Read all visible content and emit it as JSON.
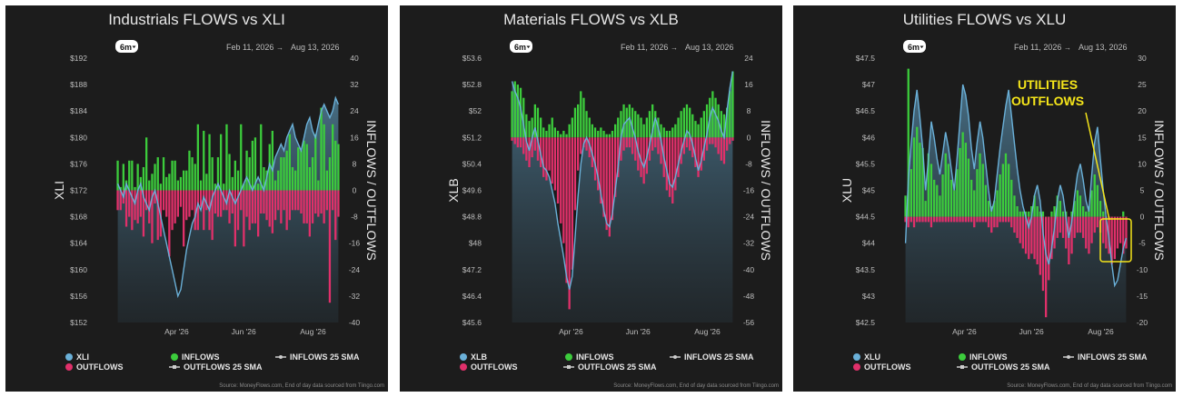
{
  "panels": [
    {
      "title": "Industrials FLOWS vs XLI",
      "timeframe": "6m",
      "date_start": "Feb 11, 2026",
      "date_arrow": "→",
      "date_end": "Aug 13, 2026",
      "left_axis_label": "XLI",
      "right_axis_label": "INFLOWS / OUTFLOWS",
      "price_ticks": [
        "$192",
        "$188",
        "$184",
        "$180",
        "$176",
        "$172",
        "$168",
        "$164",
        "$160",
        "$156",
        "$152"
      ],
      "flow_ticks": [
        "40",
        "32",
        "24",
        "16",
        "8",
        "0",
        "-8",
        "-16",
        "-24",
        "-32",
        "-40"
      ],
      "x_ticks": [
        "Apr '26",
        "Jun '26",
        "Aug '26"
      ],
      "legend": {
        "price": "XLI",
        "inflows": "INFLOWS",
        "inflows_sma": "INFLOWS 25 SMA",
        "outflows": "OUTFLOWS",
        "outflows_sma": "OUTFLOWS 25 SMA"
      },
      "source": "Source: MoneyFlows.com, End of day data sourced from Tiingo.com"
    },
    {
      "title": "Materials FLOWS vs XLB",
      "timeframe": "6m",
      "date_start": "Feb 11, 2026",
      "date_arrow": "→",
      "date_end": "Aug 13, 2026",
      "left_axis_label": "XLB",
      "right_axis_label": "INFLOWS / OUTFLOWS",
      "price_ticks": [
        "$53.6",
        "$52.8",
        "$52",
        "$51.2",
        "$50.4",
        "$49.6",
        "$48.8",
        "$48",
        "$47.2",
        "$46.4",
        "$45.6"
      ],
      "flow_ticks": [
        "24",
        "16",
        "8",
        "0",
        "-8",
        "-16",
        "-24",
        "-32",
        "-40",
        "-48",
        "-56"
      ],
      "x_ticks": [
        "Apr '26",
        "Jun '26",
        "Aug '26"
      ],
      "legend": {
        "price": "XLB",
        "inflows": "INFLOWS",
        "inflows_sma": "INFLOWS 25 SMA",
        "outflows": "OUTFLOWS",
        "outflows_sma": "OUTFLOWS 25 SMA"
      },
      "source": "Source: MoneyFlows.com, End of day data sourced from Tiingo.com"
    },
    {
      "title": "Utilities FLOWS vs XLU",
      "timeframe": "6m",
      "date_start": "Feb 11, 2026",
      "date_arrow": "→",
      "date_end": "Aug 13, 2026",
      "left_axis_label": "XLU",
      "right_axis_label": "INFLOWS / OUTFLOWS",
      "price_ticks": [
        "$47.5",
        "$47",
        "$46.5",
        "$46",
        "$45.5",
        "$45",
        "$44.5",
        "$44",
        "$43.5",
        "$43",
        "$42.5"
      ],
      "flow_ticks": [
        "30",
        "25",
        "20",
        "15",
        "10",
        "5",
        "0",
        "-5",
        "-10",
        "-15",
        "-20"
      ],
      "x_ticks": [
        "Apr '26",
        "Jun '26",
        "Aug '26"
      ],
      "legend": {
        "price": "XLU",
        "inflows": "INFLOWS",
        "inflows_sma": "INFLOWS 25 SMA",
        "outflows": "OUTFLOWS",
        "outflows_sma": "OUTFLOWS 25 SMA"
      },
      "annotation": [
        "UTILITIES",
        "OUTFLOWS"
      ],
      "source": "Source: MoneyFlows.com, End of day data sourced from Tiingo.com"
    }
  ],
  "colors": {
    "background": "#1c1c1c",
    "price_line": "#6ab0d8",
    "inflow": "#3ccc3c",
    "outflow": "#e0306a",
    "annotation": "#f5e51a",
    "text": "#e6e6e6",
    "tick": "#bdbdbd"
  },
  "chart_data": [
    {
      "type": "bar",
      "title": "Industrials FLOWS vs XLI",
      "x_range": [
        "2026-02-11",
        "2026-08-13"
      ],
      "price_series": {
        "name": "XLI",
        "ylim": [
          152,
          192
        ],
        "values": [
          173,
          172,
          171,
          173,
          172,
          171,
          170,
          172,
          173,
          171,
          170,
          169,
          171,
          172,
          170,
          168,
          166,
          164,
          162,
          160,
          158,
          156,
          157,
          160,
          163,
          165,
          167,
          168,
          170,
          169,
          171,
          170,
          169,
          171,
          172,
          173,
          172,
          171,
          170,
          172,
          171,
          170,
          171,
          172,
          173,
          174,
          173,
          172,
          173,
          174,
          173,
          172,
          174,
          176,
          175,
          177,
          178,
          179,
          178,
          180,
          181,
          182,
          180,
          179,
          178,
          180,
          182,
          183,
          181,
          180,
          182,
          184,
          185,
          184,
          183,
          184,
          186,
          185
        ]
      },
      "flow_series": {
        "ylim": [
          -40,
          40
        ],
        "inflows": [
          9,
          1,
          8,
          3,
          9,
          9,
          1,
          8,
          4,
          7,
          16,
          3,
          5,
          8,
          10,
          2,
          10,
          4,
          5,
          9,
          9,
          3,
          4,
          6,
          6,
          12,
          10,
          8,
          20,
          3,
          18,
          5,
          17,
          10,
          2,
          10,
          17,
          2,
          20,
          11,
          4,
          9,
          6,
          20,
          2,
          12,
          10,
          15,
          16,
          2,
          20,
          7,
          6,
          14,
          18,
          3,
          6,
          10,
          10,
          12,
          17,
          7,
          6,
          13,
          12,
          15,
          14,
          7,
          10,
          17,
          3,
          25,
          20,
          6,
          10,
          20,
          15,
          14
        ],
        "outflows": [
          -6,
          -6,
          -4,
          -11,
          -8,
          -12,
          -9,
          -10,
          -8,
          -14,
          -6,
          -10,
          -16,
          -4,
          -15,
          -14,
          -6,
          -8,
          -20,
          -12,
          -10,
          -8,
          -5,
          -17,
          -9,
          -8,
          -6,
          -12,
          -12,
          -5,
          -12,
          -6,
          -12,
          -15,
          -7,
          -8,
          -8,
          -6,
          -6,
          -10,
          -7,
          -17,
          -12,
          -6,
          -17,
          -8,
          -12,
          -10,
          -10,
          -14,
          -7,
          -7,
          -9,
          -11,
          -13,
          -9,
          -6,
          -10,
          -6,
          -12,
          -9,
          -6,
          -6,
          -6,
          -7,
          -10,
          -10,
          -14,
          -10,
          -7,
          -8,
          -7,
          -10,
          -6,
          -34,
          -6,
          -15,
          -8
        ]
      }
    },
    {
      "type": "bar",
      "title": "Materials FLOWS vs XLB",
      "x_range": [
        "2026-02-11",
        "2026-08-13"
      ],
      "price_series": {
        "name": "XLB",
        "ylim": [
          45.6,
          53.6
        ],
        "values": [
          52.9,
          52.6,
          52.4,
          52.1,
          51.6,
          51.1,
          50.8,
          51.2,
          51.5,
          51.1,
          50.7,
          50.3,
          50.2,
          50.0,
          49.6,
          49.2,
          48.6,
          48.1,
          47.6,
          47.0,
          46.6,
          47.0,
          48.2,
          49.4,
          50.4,
          51.0,
          51.2,
          51.0,
          50.7,
          50.4,
          50.0,
          49.5,
          49.0,
          48.6,
          48.5,
          48.9,
          49.6,
          50.3,
          51.2,
          51.6,
          51.7,
          51.8,
          51.5,
          51.2,
          50.8,
          50.5,
          50.3,
          50.6,
          51.0,
          51.4,
          51.8,
          51.5,
          51.1,
          50.6,
          50.2,
          49.8,
          49.7,
          50.0,
          50.4,
          50.8,
          51.1,
          51.4,
          51.3,
          51.0,
          50.6,
          50.2,
          50.5,
          50.9,
          51.3,
          51.8,
          52.1,
          51.9,
          51.7,
          51.4,
          51.2,
          52.0,
          52.7,
          53.2
        ]
      },
      "flow_series": {
        "ylim": [
          -56,
          24
        ],
        "inflows": [
          14,
          17,
          16,
          15,
          12,
          7,
          5,
          6,
          10,
          9,
          6,
          3,
          2,
          4,
          6,
          3,
          2,
          1,
          2,
          1,
          4,
          6,
          9,
          10,
          14,
          12,
          8,
          6,
          4,
          3,
          2,
          3,
          2,
          1,
          1,
          2,
          4,
          6,
          8,
          10,
          9,
          10,
          9,
          8,
          7,
          6,
          4,
          6,
          8,
          10,
          8,
          6,
          4,
          3,
          2,
          2,
          3,
          4,
          6,
          8,
          9,
          10,
          9,
          7,
          5,
          4,
          6,
          8,
          10,
          12,
          14,
          12,
          10,
          8,
          7,
          9,
          14,
          20
        ],
        "outflows": [
          -1,
          -2,
          -3,
          -3,
          -5,
          -7,
          -9,
          -6,
          -4,
          -7,
          -9,
          -12,
          -13,
          -10,
          -14,
          -16,
          -20,
          -26,
          -32,
          -44,
          -52,
          -40,
          -22,
          -10,
          -5,
          -3,
          -4,
          -6,
          -9,
          -13,
          -16,
          -20,
          -24,
          -28,
          -30,
          -25,
          -18,
          -12,
          -7,
          -4,
          -3,
          -3,
          -5,
          -7,
          -10,
          -12,
          -14,
          -11,
          -7,
          -4,
          -3,
          -5,
          -8,
          -12,
          -16,
          -18,
          -20,
          -16,
          -12,
          -8,
          -5,
          -3,
          -4,
          -6,
          -9,
          -12,
          -10,
          -7,
          -4,
          -2,
          -2,
          -3,
          -5,
          -7,
          -8,
          -4,
          -2,
          -1
        ]
      }
    },
    {
      "type": "bar",
      "title": "Utilities FLOWS vs XLU",
      "x_range": [
        "2026-02-11",
        "2026-08-13"
      ],
      "price_series": {
        "name": "XLU",
        "ylim": [
          42.5,
          47.5
        ],
        "values": [
          44.0,
          45.2,
          45.9,
          46.5,
          46.9,
          46.4,
          45.8,
          45.0,
          45.6,
          46.3,
          46.0,
          45.6,
          45.3,
          45.7,
          46.1,
          45.8,
          45.4,
          45.0,
          45.6,
          46.3,
          47.0,
          46.8,
          46.4,
          45.8,
          45.4,
          45.9,
          46.3,
          46.0,
          45.5,
          45.0,
          44.6,
          44.8,
          45.3,
          45.8,
          46.2,
          46.6,
          46.9,
          46.4,
          45.9,
          45.4,
          45.0,
          44.7,
          44.5,
          44.3,
          44.5,
          44.9,
          45.1,
          44.8,
          44.2,
          43.8,
          43.6,
          43.9,
          44.3,
          44.8,
          45.1,
          44.9,
          44.5,
          44.1,
          44.4,
          44.9,
          45.3,
          45.5,
          45.2,
          44.8,
          44.6,
          45.3,
          45.9,
          46.2,
          45.6,
          45.0,
          44.5,
          44.1,
          43.6,
          43.2,
          43.3,
          43.6,
          43.9,
          44.1
        ]
      },
      "flow_series": {
        "ylim": [
          -20,
          30
        ],
        "inflows": [
          4,
          28,
          9,
          15,
          17,
          14,
          13,
          3,
          12,
          10,
          7,
          6,
          4,
          8,
          12,
          10,
          7,
          5,
          9,
          13,
          16,
          14,
          11,
          7,
          5,
          9,
          12,
          10,
          6,
          3,
          2,
          3,
          5,
          8,
          10,
          12,
          10,
          7,
          4,
          2,
          1,
          1,
          1,
          1,
          2,
          4,
          2,
          1,
          1,
          0,
          0,
          1,
          2,
          4,
          3,
          1,
          1,
          0,
          1,
          3,
          5,
          4,
          2,
          1,
          2,
          5,
          8,
          6,
          3,
          1,
          0,
          0,
          0,
          0,
          0,
          0,
          1,
          0
        ],
        "outflows": [
          -1,
          -2,
          -1,
          -2,
          -1,
          -1,
          -1,
          -1,
          -1,
          -2,
          -1,
          -1,
          -1,
          -1,
          -1,
          -1,
          -1,
          -1,
          -1,
          -1,
          -1,
          -1,
          -1,
          -1,
          -2,
          -1,
          -1,
          -1,
          -1,
          -2,
          -3,
          -2,
          -2,
          -1,
          -1,
          -1,
          -1,
          -2,
          -3,
          -4,
          -5,
          -6,
          -7,
          -8,
          -7,
          -8,
          -9,
          -11,
          -14,
          -19,
          -12,
          -8,
          -6,
          -4,
          -3,
          -4,
          -6,
          -9,
          -7,
          -4,
          -3,
          -3,
          -4,
          -6,
          -7,
          -5,
          -3,
          -2,
          -3,
          -5,
          -6,
          -7,
          -9,
          -8,
          -6,
          -5,
          -7,
          -6
        ]
      }
    }
  ]
}
